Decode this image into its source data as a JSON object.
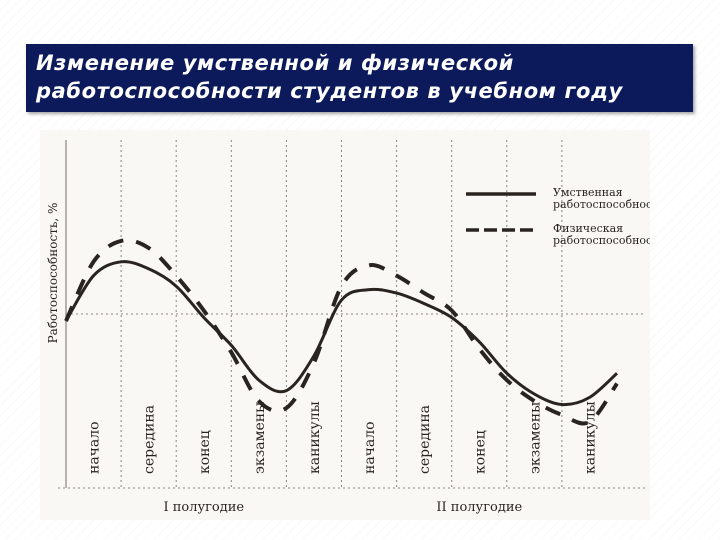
{
  "slide": {
    "title_line1": "Изменение умственной и физической",
    "title_line2": "работоспособности студентов в учебном году"
  },
  "colors": {
    "title_bg": "#0c1a5c",
    "title_text": "#ffffff",
    "ink": "#2a2420",
    "gridline": "#8a8580"
  },
  "chart_data": {
    "type": "line",
    "ylabel": "Работоспособность, %",
    "grid": "dotted vertical lines between periods, dotted horizontal baseline",
    "legend_position": "top-right",
    "categories": [
      "начало",
      "середина",
      "конец",
      "экзамены",
      "каникулы",
      "начало",
      "середина",
      "конец",
      "экзамены",
      "каникулы"
    ],
    "groups": [
      {
        "label": "I полугодие",
        "span": [
          0,
          4
        ]
      },
      {
        "label": "II полугодие",
        "span": [
          5,
          9
        ]
      }
    ],
    "x_range": [
      0,
      10
    ],
    "y_range": [
      0,
      100
    ],
    "series": [
      {
        "name": "Умственная работоспособность",
        "style": "solid",
        "x": [
          0.0,
          0.5,
          1.0,
          1.5,
          2.0,
          2.5,
          3.0,
          3.5,
          4.0,
          4.5,
          5.0,
          5.5,
          6.0,
          6.5,
          7.0,
          7.5,
          8.0,
          8.5,
          9.0,
          9.5,
          10.0
        ],
        "values": [
          48,
          61,
          65,
          63,
          58,
          49,
          41,
          31,
          28,
          38,
          54,
          57,
          56,
          53,
          49,
          42,
          33,
          27,
          24,
          26,
          33
        ]
      },
      {
        "name": "Физическая работоспособность",
        "style": "dashed",
        "x": [
          0.0,
          0.5,
          1.0,
          1.5,
          2.0,
          2.5,
          3.0,
          3.5,
          4.0,
          4.5,
          5.0,
          5.5,
          6.0,
          6.5,
          7.0,
          7.5,
          8.0,
          8.5,
          9.0,
          9.5,
          10.0
        ],
        "values": [
          48,
          65,
          71,
          69,
          61,
          51,
          39,
          25,
          23,
          36,
          58,
          64,
          61,
          56,
          51,
          40,
          31,
          25,
          21,
          19,
          30
        ]
      }
    ]
  }
}
